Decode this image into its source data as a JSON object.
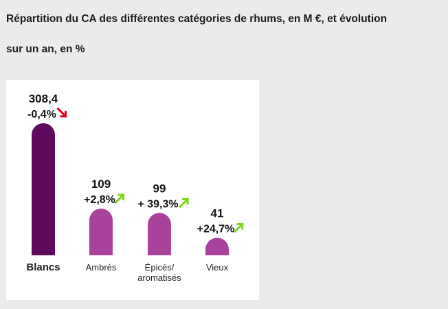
{
  "page": {
    "title_line1": "Répartition du CA des différentes catégories de rhums, en M €, et évolution",
    "title_line2": "sur un an, en %"
  },
  "colors": {
    "highlight_bar": "#5e0a5e",
    "regular_bar": "#a8429b",
    "highlight_label": "#5e0a5e",
    "down_arrow": "#e3001b",
    "up_arrow": "#7ed321"
  },
  "chart_data": {
    "type": "bar",
    "categories": [
      "Blancs",
      "Ambrés",
      "Épicés/ aromatisés",
      "Vieux"
    ],
    "category_lines": [
      [
        "Blancs"
      ],
      [
        "Ambrés"
      ],
      [
        "Épicés/",
        "aromatisés"
      ],
      [
        "Vieux"
      ]
    ],
    "values": [
      308.4,
      109,
      99,
      41
    ],
    "value_labels": [
      "308,4",
      "109",
      "99",
      "41"
    ],
    "change_labels": [
      "-0,4%",
      "+2,8%",
      "+ 39,3%",
      "+24,7%"
    ],
    "change_values": [
      -0.4,
      2.8,
      39.3,
      24.7
    ],
    "trend_icons": [
      "arrow-down-right-icon",
      "arrow-up-right-icon",
      "arrow-up-right-icon",
      "arrow-up-right-icon"
    ],
    "highlighted_category": "Blancs",
    "title": "Répartition du CA des différentes catégories de rhums, en M €, et évolution sur un an, en %",
    "xlabel": "",
    "ylabel": "",
    "ylim": [
      0,
      308.4
    ],
    "grid": false,
    "legend": "none"
  }
}
